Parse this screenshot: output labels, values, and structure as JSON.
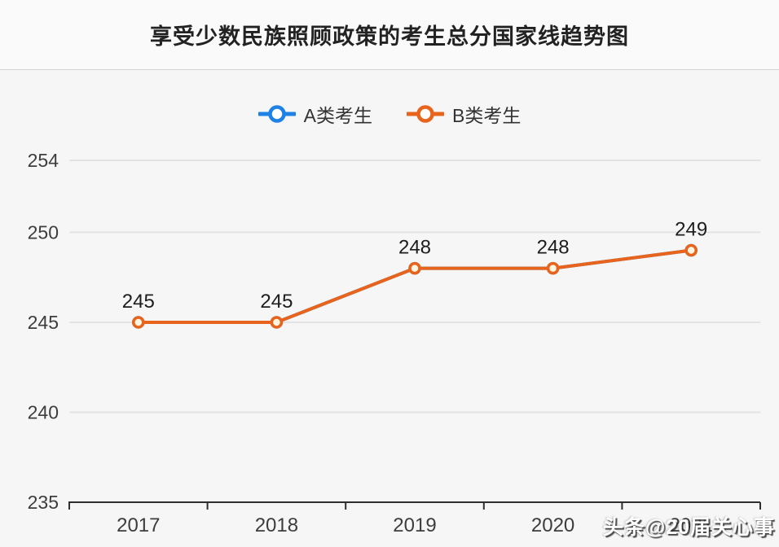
{
  "header": {
    "title": "享受少数民族照顾政策的考生总分国家线趋势图"
  },
  "watermark": {
    "text": "头条@20届关心事"
  },
  "colors": {
    "series_a_blue": "#1E82E4",
    "series_b_orange": "#E8641C",
    "gridline": "#e3e3e3",
    "axis_line": "#2f2f2f",
    "axis_label": "#3d3d3d",
    "value_label": "#1d1d1d"
  },
  "chart_data": {
    "type": "line",
    "title": "享受少数民族照顾政策的考生总分国家线趋势图",
    "categories": [
      "2017",
      "2018",
      "2019",
      "2020",
      "2021"
    ],
    "series": [
      {
        "name": "A类考生",
        "color": "#1E82E4",
        "values": [
          245,
          245,
          248,
          248,
          249
        ],
        "note": "line hidden beneath B类考生 line (identical values)"
      },
      {
        "name": "B类考生",
        "color": "#E8641C",
        "values": [
          245,
          245,
          248,
          248,
          249
        ]
      }
    ],
    "data_labels": [
      "245",
      "245",
      "248",
      "248",
      "249"
    ],
    "xlabel": "",
    "ylabel": "",
    "y_ticks": [
      235,
      240,
      245,
      250,
      254
    ],
    "ylim": [
      235,
      254
    ],
    "grid": true,
    "legend_position": "top"
  }
}
